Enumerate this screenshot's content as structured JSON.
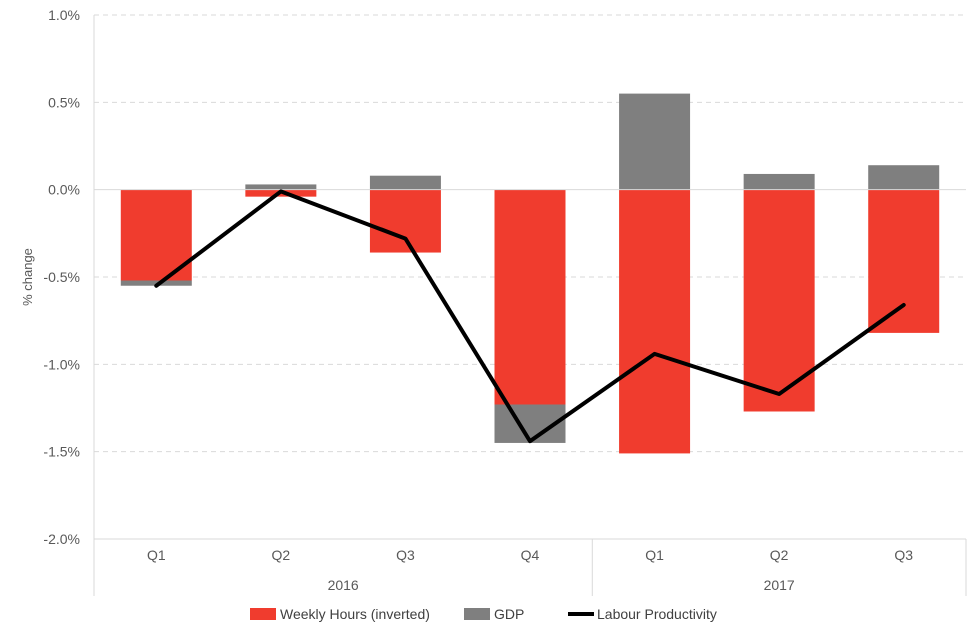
{
  "chart_data": {
    "type": "bar",
    "stacked": true,
    "categories": [
      "Q1",
      "Q2",
      "Q3",
      "Q4",
      "Q1",
      "Q2",
      "Q3"
    ],
    "groups": [
      {
        "label": "2016",
        "count": 4
      },
      {
        "label": "2017",
        "count": 3
      }
    ],
    "series": [
      {
        "name": "Weekly Hours (inverted)",
        "type": "bar",
        "color": "#f03c2e",
        "values": [
          -0.52,
          -0.04,
          -0.36,
          -1.23,
          -1.51,
          -1.27,
          -0.82
        ]
      },
      {
        "name": "GDP",
        "type": "bar",
        "color": "#7f7f7f",
        "values": [
          -0.03,
          0.03,
          0.08,
          -0.22,
          0.55,
          0.09,
          0.14
        ]
      },
      {
        "name": "Labour Productivity",
        "type": "line",
        "color": "#000000",
        "values": [
          -0.55,
          -0.01,
          -0.28,
          -1.44,
          -0.94,
          -1.17,
          -0.66
        ]
      }
    ],
    "ylabel": "% change",
    "ylim": [
      -2.0,
      1.0
    ],
    "yticks": [
      "1.0%",
      "0.5%",
      "0.0%",
      "-0.5%",
      "-1.0%",
      "-1.5%",
      "-2.0%"
    ],
    "ytick_values": [
      1.0,
      0.5,
      0.0,
      -0.5,
      -1.0,
      -1.5,
      -2.0
    ],
    "grid": true,
    "legend_position": "bottom"
  }
}
